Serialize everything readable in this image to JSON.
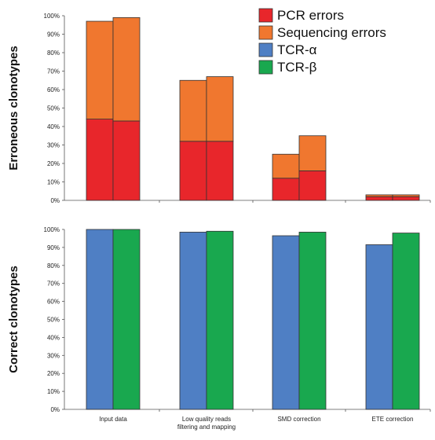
{
  "chart_data": [
    {
      "type": "bar",
      "stacked": true,
      "ylabel": "Erroneous clonotypes",
      "ylim": [
        0,
        100
      ],
      "yticks": [
        "0%",
        "10%",
        "20%",
        "30%",
        "40%",
        "50%",
        "60%",
        "70%",
        "80%",
        "90%",
        "100%"
      ],
      "categories": [
        "Input data",
        "Low quality reads filtering and mapping",
        "SMD correction",
        "ETE correction"
      ],
      "bar_groups": [
        "TCR-α",
        "TCR-β"
      ],
      "series": [
        {
          "name": "PCR errors",
          "color": "#e8262b",
          "values": [
            [
              44,
              43
            ],
            [
              32,
              32
            ],
            [
              12,
              16
            ],
            [
              2,
              2
            ]
          ]
        },
        {
          "name": "Sequencing errors",
          "color": "#f0772f",
          "values": [
            [
              53,
              56
            ],
            [
              33,
              35
            ],
            [
              13,
              19
            ],
            [
              1,
              1
            ]
          ]
        }
      ]
    },
    {
      "type": "bar",
      "ylabel": "Correct clonotypes",
      "ylim": [
        0,
        100
      ],
      "yticks": [
        "0%",
        "10%",
        "20%",
        "30%",
        "40%",
        "50%",
        "60%",
        "70%",
        "80%",
        "90%",
        "100%"
      ],
      "categories": [
        "Input data",
        "Low quality reads filtering and mapping",
        "SMD correction",
        "ETE correction"
      ],
      "series": [
        {
          "name": "TCR-α",
          "color": "#4f7fc4",
          "values": [
            100,
            98.5,
            96.5,
            91.5
          ]
        },
        {
          "name": "TCR-β",
          "color": "#19a84f",
          "values": [
            100,
            99,
            98.5,
            98
          ]
        }
      ]
    }
  ],
  "category_labels": [
    [
      "Input data"
    ],
    [
      "Low quality reads",
      "filtering and mapping"
    ],
    [
      "SMD correction"
    ],
    [
      "ETE correction"
    ]
  ],
  "legend": [
    {
      "label": "PCR errors",
      "color": "#e8262b"
    },
    {
      "label": "Sequencing errors",
      "color": "#f0772f"
    },
    {
      "label": "TCR-α",
      "color": "#4f7fc4"
    },
    {
      "label": "TCR-β",
      "color": "#19a84f"
    }
  ]
}
